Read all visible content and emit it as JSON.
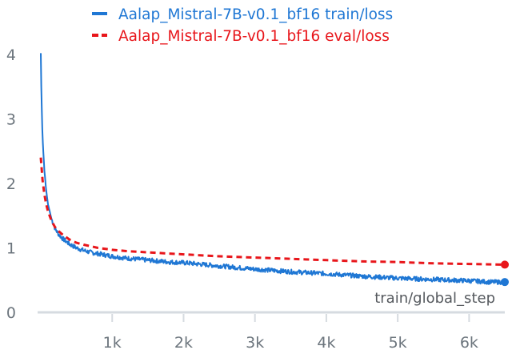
{
  "chart_data": {
    "type": "line",
    "title": "",
    "xlabel": "train/global_step",
    "ylabel": "",
    "xlim": [
      0,
      6500
    ],
    "ylim": [
      0,
      4
    ],
    "x_ticks": [
      {
        "value": 1000,
        "label": "1k"
      },
      {
        "value": 2000,
        "label": "2k"
      },
      {
        "value": 3000,
        "label": "3k"
      },
      {
        "value": 4000,
        "label": "4k"
      },
      {
        "value": 5000,
        "label": "5k"
      },
      {
        "value": 6000,
        "label": "6k"
      }
    ],
    "y_ticks": [
      {
        "value": 0,
        "label": "0"
      },
      {
        "value": 1,
        "label": "1"
      },
      {
        "value": 2,
        "label": "2"
      },
      {
        "value": 3,
        "label": "3"
      },
      {
        "value": 4,
        "label": "4"
      }
    ],
    "grid": false,
    "legend_placement": "top-center",
    "series": [
      {
        "name": "Aalap_Mistral-7B-v0.1_bf16 train/loss",
        "color": "#1f77d4",
        "style": "solid",
        "noisy": true,
        "x": [
          0,
          10,
          25,
          50,
          75,
          100,
          150,
          200,
          250,
          300,
          400,
          500,
          600,
          700,
          800,
          1000,
          1200,
          1500,
          1800,
          2000,
          2500,
          3000,
          3500,
          4000,
          4500,
          5000,
          5500,
          6000,
          6300,
          6500
        ],
        "y": [
          4.02,
          3.3,
          2.7,
          2.2,
          1.9,
          1.68,
          1.45,
          1.3,
          1.21,
          1.15,
          1.06,
          1.0,
          0.96,
          0.93,
          0.91,
          0.87,
          0.84,
          0.81,
          0.78,
          0.77,
          0.72,
          0.67,
          0.63,
          0.6,
          0.56,
          0.53,
          0.51,
          0.49,
          0.47,
          0.47
        ]
      },
      {
        "name": "Aalap_Mistral-7B-v0.1_bf16 eval/loss",
        "color": "#e8161b",
        "style": "dashed",
        "x": [
          0,
          25,
          50,
          75,
          100,
          150,
          200,
          250,
          300,
          400,
          500,
          600,
          800,
          1000,
          1200,
          1500,
          2000,
          2500,
          3000,
          3500,
          4000,
          4500,
          5000,
          5500,
          6000,
          6500
        ],
        "y": [
          2.4,
          2.05,
          1.83,
          1.68,
          1.57,
          1.42,
          1.32,
          1.26,
          1.21,
          1.13,
          1.08,
          1.05,
          1.0,
          0.97,
          0.95,
          0.93,
          0.9,
          0.87,
          0.85,
          0.83,
          0.81,
          0.79,
          0.78,
          0.76,
          0.75,
          0.74
        ]
      }
    ]
  }
}
